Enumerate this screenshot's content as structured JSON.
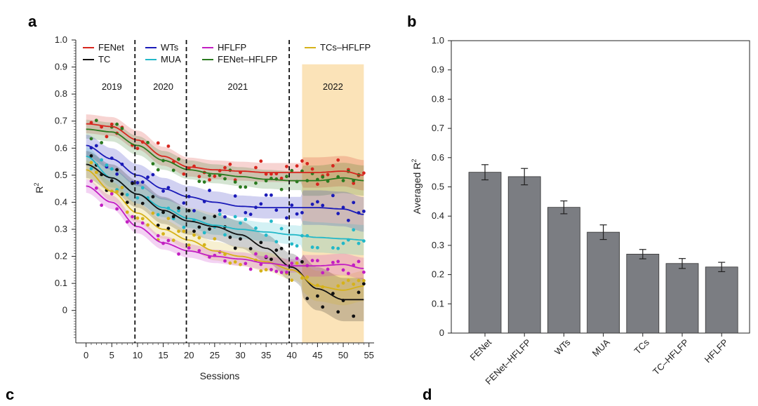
{
  "panel_labels": {
    "a": "a",
    "b": "b",
    "c": "c",
    "d": "d"
  },
  "chart_data": [
    {
      "type": "scatter",
      "panel": "a",
      "xlabel": "Sessions",
      "ylabel": "R",
      "ylabel_sup": "2",
      "xlim": [
        -2,
        56
      ],
      "ylim": [
        -0.12,
        1.0
      ],
      "xticks": [
        0,
        5,
        10,
        15,
        20,
        25,
        30,
        35,
        40,
        45,
        50,
        55
      ],
      "yticks": [
        0,
        0.1,
        0.2,
        0.3,
        0.4,
        0.5,
        0.6,
        0.7,
        0.8,
        0.9,
        1.0
      ],
      "ytick_labels": [
        "0",
        "0.1",
        "0.2",
        "0.3",
        "0.4",
        "0.5",
        "0.6",
        "0.7",
        "0.8",
        "0.9",
        "1.0"
      ],
      "xtick_labels": [
        "0",
        "5",
        "10",
        "15",
        "20",
        "25",
        "30",
        "35",
        "40",
        "45",
        "50",
        "55"
      ],
      "year_boundaries": [
        9.5,
        19.5,
        39.5
      ],
      "years": [
        {
          "label": "2019",
          "center": 5
        },
        {
          "label": "2020",
          "center": 15
        },
        {
          "label": "2021",
          "center": 29.5
        },
        {
          "label": "2022",
          "center": 48
        }
      ],
      "shaded_region": {
        "x_range": [
          42,
          54
        ],
        "y_top": 0.91,
        "color": "#fbe3b8"
      },
      "legend": [
        {
          "label": "FENet",
          "color": "#d7261e"
        },
        {
          "label": "TC",
          "color": "#111111"
        },
        {
          "label": "WTs",
          "color": "#1a1ab8"
        },
        {
          "label": "MUA",
          "color": "#22b8c8"
        },
        {
          "label": "HFLFP",
          "color": "#c21ec2"
        },
        {
          "label": "FENet–HFLFP",
          "color": "#2a7a1f"
        },
        {
          "label": "TCs–HFLFP",
          "color": "#d6b21a"
        }
      ],
      "series": [
        {
          "name": "FENet",
          "color": "#d7261e",
          "band": 0.035,
          "fit_x": [
            0,
            5,
            10,
            15,
            20,
            25,
            30,
            35,
            40,
            45,
            50,
            54
          ],
          "fit_y": [
            0.69,
            0.68,
            0.63,
            0.57,
            0.53,
            0.52,
            0.515,
            0.51,
            0.51,
            0.51,
            0.515,
            0.5
          ]
        },
        {
          "name": "FENet–HFLFP",
          "color": "#2a7a1f",
          "band": 0.035,
          "fit_x": [
            0,
            5,
            10,
            15,
            20,
            25,
            30,
            35,
            40,
            45,
            50,
            54
          ],
          "fit_y": [
            0.67,
            0.66,
            0.61,
            0.555,
            0.52,
            0.505,
            0.495,
            0.485,
            0.48,
            0.48,
            0.49,
            0.48
          ]
        },
        {
          "name": "WTs",
          "color": "#1a1ab8",
          "band": 0.04,
          "fit_x": [
            0,
            5,
            10,
            15,
            20,
            25,
            30,
            35,
            40,
            45,
            50,
            54
          ],
          "fit_y": [
            0.61,
            0.56,
            0.5,
            0.45,
            0.42,
            0.4,
            0.385,
            0.38,
            0.38,
            0.38,
            0.375,
            0.355
          ]
        },
        {
          "name": "MUA",
          "color": "#22b8c8",
          "band": 0.035,
          "fit_x": [
            0,
            5,
            10,
            15,
            20,
            25,
            30,
            35,
            40,
            45,
            50,
            54
          ],
          "fit_y": [
            0.57,
            0.49,
            0.43,
            0.38,
            0.34,
            0.315,
            0.3,
            0.29,
            0.28,
            0.27,
            0.265,
            0.26
          ]
        },
        {
          "name": "TC",
          "color": "#111111",
          "band": 0.05,
          "fit_x": [
            0,
            5,
            10,
            15,
            20,
            25,
            30,
            35,
            40,
            45,
            50,
            54
          ],
          "fit_y": [
            0.54,
            0.49,
            0.43,
            0.37,
            0.33,
            0.31,
            0.28,
            0.23,
            0.16,
            0.08,
            0.04,
            0.04
          ]
        },
        {
          "name": "TCs–HFLFP",
          "color": "#d6b21a",
          "band": 0.035,
          "fit_x": [
            0,
            5,
            10,
            15,
            20,
            25,
            30,
            35,
            40,
            45,
            50,
            54
          ],
          "fit_y": [
            0.52,
            0.44,
            0.36,
            0.3,
            0.26,
            0.22,
            0.2,
            0.18,
            0.15,
            0.09,
            0.075,
            0.09
          ]
        },
        {
          "name": "HFLFP",
          "color": "#c21ec2",
          "band": 0.025,
          "fit_x": [
            0,
            5,
            10,
            15,
            20,
            25,
            30,
            35,
            40,
            45,
            50,
            54
          ],
          "fit_y": [
            0.46,
            0.4,
            0.31,
            0.25,
            0.22,
            0.2,
            0.19,
            0.175,
            0.165,
            0.165,
            0.17,
            0.155
          ]
        }
      ]
    },
    {
      "type": "bar",
      "panel": "b",
      "ylabel": "Averaged R",
      "ylabel_sup": "2",
      "ylim": [
        0,
        1.0
      ],
      "yticks": [
        0,
        0.1,
        0.2,
        0.3,
        0.4,
        0.5,
        0.6,
        0.7,
        0.8,
        0.9,
        1.0
      ],
      "ytick_labels": [
        "0",
        "0.1",
        "0.2",
        "0.3",
        "0.4",
        "0.5",
        "0.6",
        "0.7",
        "0.8",
        "0.9",
        "1.0"
      ],
      "categories": [
        "FENet",
        "FENet–HFLFP",
        "WTs",
        "MUA",
        "TCs",
        "TC–HFLFP",
        "HFLFP"
      ],
      "values": [
        0.55,
        0.535,
        0.43,
        0.345,
        0.27,
        0.238,
        0.226
      ],
      "errors": [
        0.026,
        0.028,
        0.022,
        0.025,
        0.016,
        0.017,
        0.016
      ],
      "bar_color": "#7b7d82"
    }
  ]
}
